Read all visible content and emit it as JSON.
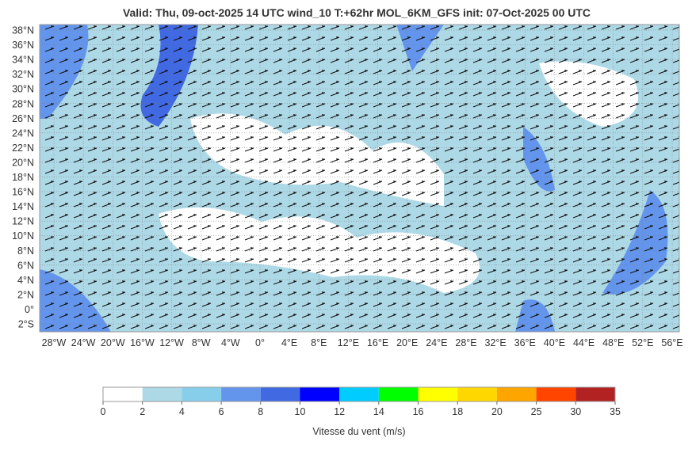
{
  "title": "Valid: Thu, 09-oct-2025   14 UTC   wind_10   T:+62hr   MOL_6KM_GFS   init: 07-Oct-2025    00 UTC",
  "lat_labels": [
    "38°N",
    "36°N",
    "34°N",
    "32°N",
    "30°N",
    "28°N",
    "26°N",
    "24°N",
    "22°N",
    "20°N",
    "18°N",
    "16°N",
    "14°N",
    "12°N",
    "10°N",
    "8°N",
    "6°N",
    "4°N",
    "2°N",
    "0°",
    "2°S"
  ],
  "lon_labels": [
    "28°W",
    "24°W",
    "20°W",
    "16°W",
    "12°W",
    "8°W",
    "4°W",
    "0°",
    "4°E",
    "8°E",
    "12°E",
    "16°E",
    "20°E",
    "24°E",
    "28°E",
    "32°E",
    "36°E",
    "40°E",
    "44°E",
    "48°E",
    "52°E",
    "56°E"
  ],
  "colorbar": {
    "ticks": [
      0,
      2,
      4,
      6,
      8,
      10,
      12,
      14,
      16,
      18,
      20,
      25,
      30,
      35
    ],
    "colors": [
      "#ffffff",
      "#add8e6",
      "#87ceeb",
      "#6495ed",
      "#4169e1",
      "#0000ff",
      "#00ccff",
      "#00ff00",
      "#ffff00",
      "#ffd700",
      "#ffa500",
      "#ff4500",
      "#b22222"
    ],
    "label": "Vitesse du vent (m/s)"
  }
}
